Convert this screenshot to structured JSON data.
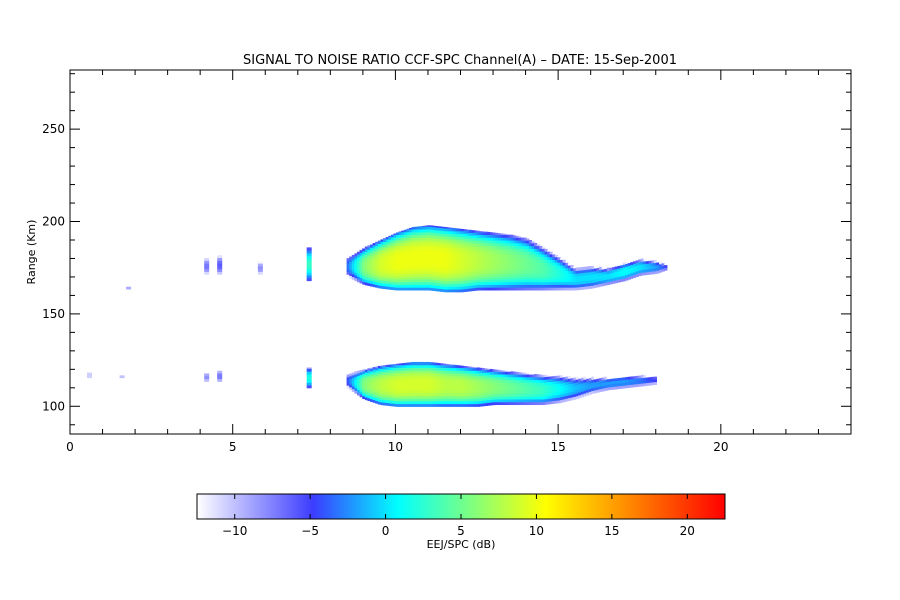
{
  "chart_data": {
    "type": "heatmap",
    "title": "SIGNAL TO NOISE RATIO CCF-SPC Channel(A) – DATE: 15-Sep-2001",
    "xlabel": "",
    "ylabel": "Range (Km)",
    "xlim": [
      0,
      24
    ],
    "ylim": [
      85,
      282
    ],
    "xticks": [
      0,
      5,
      10,
      15,
      20
    ],
    "yticks": [
      100,
      150,
      200,
      250
    ],
    "grid": false,
    "colorbar": {
      "label": "EEJ/SPC (dB)",
      "range": [
        -12.5,
        22.5
      ],
      "ticks": [
        -10,
        -5,
        0,
        5,
        10,
        15,
        20
      ],
      "colors": [
        "#ffffff",
        "#3c3cff",
        "#00ffff",
        "#ffff00",
        "#ff0000"
      ]
    },
    "echo_layers": [
      {
        "name": "upper",
        "x": [
          8.5,
          9.0,
          9.5,
          10.0,
          10.5,
          11.0,
          11.5,
          12.0,
          12.5,
          13.0,
          13.5,
          14.0,
          14.5,
          15.0,
          15.5,
          16.0,
          16.5,
          17.0,
          17.5,
          18.0,
          18.3
        ],
        "top": [
          182,
          186,
          190,
          194,
          197,
          198,
          197,
          196,
          195,
          194,
          193,
          191,
          186,
          181,
          175,
          176,
          175,
          178,
          180,
          179,
          177
        ],
        "bottom": [
          170,
          166,
          164,
          163,
          163,
          163,
          162,
          162,
          163,
          163,
          163,
          163,
          163,
          163,
          163,
          164,
          166,
          168,
          171,
          172,
          174
        ],
        "peak_snr": [
          -3,
          6,
          9,
          10,
          10,
          10,
          10,
          9,
          8,
          7,
          6,
          5,
          4,
          2,
          0,
          0,
          0,
          1,
          0,
          -2,
          -5
        ]
      },
      {
        "name": "lower",
        "x": [
          8.5,
          9.0,
          9.5,
          10.0,
          10.5,
          11.0,
          11.5,
          12.0,
          12.5,
          13.0,
          13.5,
          14.0,
          14.5,
          15.0,
          15.5,
          16.0,
          16.5,
          17.0,
          17.5,
          18.0
        ],
        "top": [
          118,
          120,
          122,
          123,
          124,
          124,
          123,
          122,
          121,
          120,
          119,
          118,
          117,
          117,
          116,
          116,
          116,
          117,
          117,
          117
        ],
        "bottom": [
          110,
          104,
          101,
          100,
          100,
          100,
          100,
          100,
          100,
          101,
          101,
          101,
          101,
          102,
          104,
          107,
          109,
          110,
          111,
          112
        ],
        "peak_snr": [
          -4,
          6,
          8,
          9,
          9,
          9,
          8,
          8,
          7,
          6,
          5,
          4,
          3,
          1,
          -1,
          -2,
          -2,
          -2,
          -3,
          -5
        ]
      }
    ],
    "isolated_echoes": [
      {
        "x": 7.35,
        "y": [
          168,
          186
        ],
        "snr": 3
      },
      {
        "x": 7.35,
        "y": [
          110,
          121
        ],
        "snr": 2
      },
      {
        "x": 4.2,
        "y": [
          170,
          182
        ],
        "snr": -7
      },
      {
        "x": 4.6,
        "y": [
          170,
          183
        ],
        "snr": -6
      },
      {
        "x": 5.85,
        "y": [
          170,
          180
        ],
        "snr": -8
      },
      {
        "x": 4.2,
        "y": [
          112,
          120
        ],
        "snr": -8
      },
      {
        "x": 4.6,
        "y": [
          112,
          121
        ],
        "snr": -7
      },
      {
        "x": 1.6,
        "y": [
          114,
          119
        ],
        "snr": -10
      },
      {
        "x": 0.6,
        "y": [
          114,
          120
        ],
        "snr": -10
      },
      {
        "x": 1.8,
        "y": [
          162,
          166
        ],
        "snr": -9
      }
    ]
  }
}
